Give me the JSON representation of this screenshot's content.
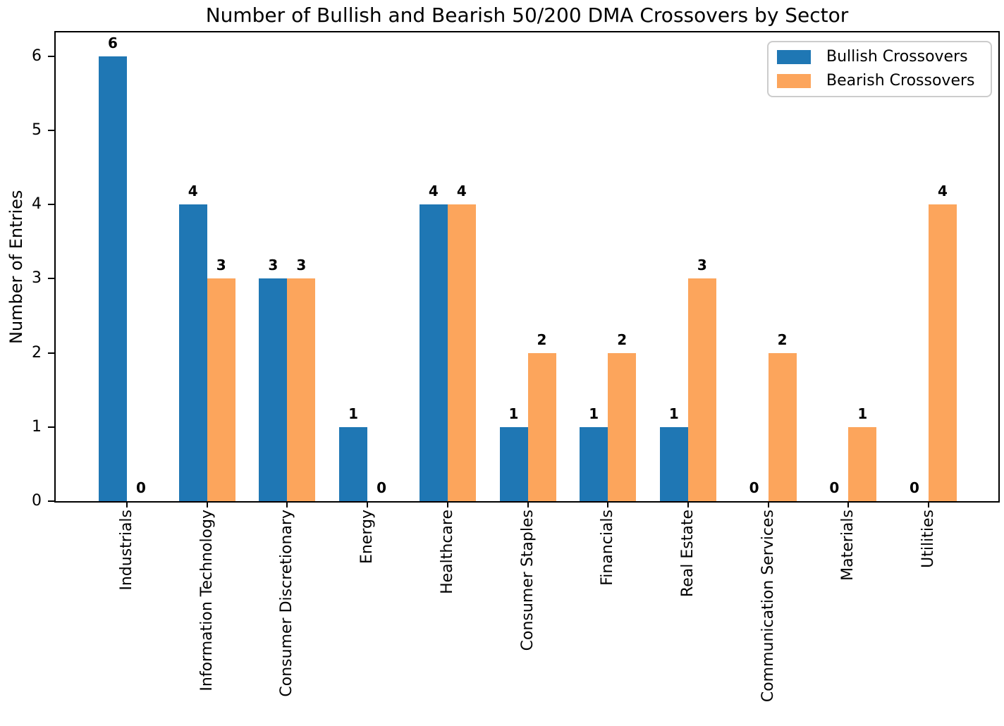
{
  "chart_data": {
    "type": "bar",
    "title": "Number of Bullish and Bearish 50/200 DMA Crossovers by Sector",
    "xlabel": "",
    "ylabel": "Number of Entries",
    "categories": [
      "Industrials",
      "Information Technology",
      "Consumer Discretionary",
      "Energy",
      "Healthcare",
      "Consumer Staples",
      "Financials",
      "Real Estate",
      "Communication Services",
      "Materials",
      "Utilities"
    ],
    "series": [
      {
        "name": "Bullish Crossovers",
        "color": "#1f77b4",
        "values": [
          6,
          4,
          3,
          1,
          4,
          1,
          1,
          1,
          0,
          0,
          0
        ]
      },
      {
        "name": "Bearish Crossovers",
        "color": "#fca55c",
        "values": [
          0,
          3,
          3,
          0,
          4,
          2,
          2,
          3,
          2,
          1,
          4
        ]
      }
    ],
    "y_ticks": [
      0,
      1,
      2,
      3,
      4,
      5,
      6
    ],
    "ylim": [
      0,
      6.32
    ],
    "bar_value_labels": true,
    "grid": false,
    "legend_position": "upper right",
    "colors": {
      "axis": "#000000",
      "text": "#000000",
      "legend_border": "#cccccc",
      "background": "#ffffff"
    }
  }
}
